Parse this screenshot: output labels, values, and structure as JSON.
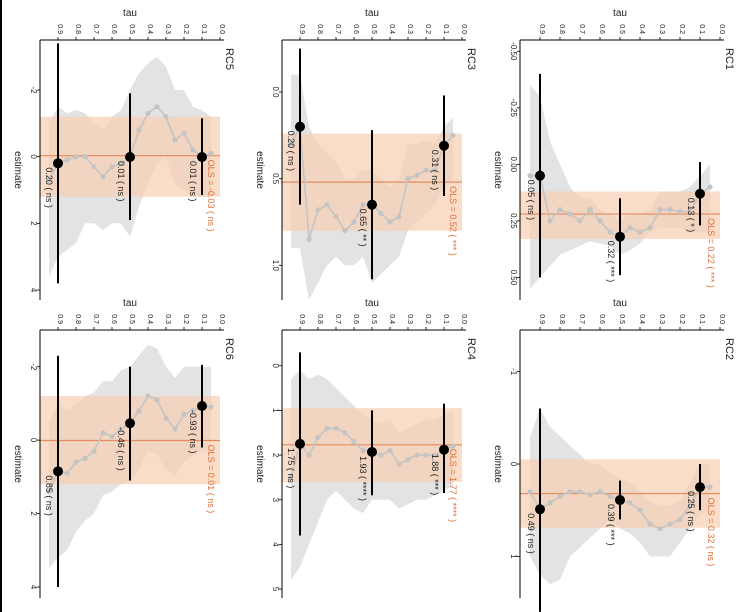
{
  "colors": {
    "band": "#d9d9d9",
    "ols_band": "#f6cfb0",
    "ols_line": "#e38b5e",
    "ols_text": "#e0703a",
    "point": "#000000",
    "curve": "#c4c4c4"
  },
  "common": {
    "tau_label": "tau",
    "estimate_label": "estimate"
  },
  "chart_data": [
    {
      "type": "line",
      "panel": "RC1",
      "title": "RC1",
      "xlabel": "tau",
      "ylabel": "estimate",
      "xlim": [
        1.0,
        0.0
      ],
      "ylim": [
        -0.55,
        0.6
      ],
      "x_ticks": [
        0.9,
        0.8,
        0.7,
        0.6,
        0.5,
        0.4,
        0.3,
        0.2,
        0.1,
        0.0
      ],
      "x_tick_labels": [
        "0.9",
        "0.8",
        "0.7",
        "0.6",
        "0.5",
        "0.4",
        "0.3",
        "0.2",
        "0.1",
        "0.0"
      ],
      "y_ticks": [
        -0.5,
        -0.25,
        0.0,
        0.25,
        0.5
      ],
      "y_tick_labels": [
        "-0.50",
        "-0.25",
        "0.00",
        "0.25",
        "0.50"
      ],
      "curve": {
        "x": [
          0.95,
          0.9,
          0.85,
          0.8,
          0.75,
          0.7,
          0.65,
          0.6,
          0.55,
          0.5,
          0.45,
          0.4,
          0.35,
          0.3,
          0.25,
          0.2,
          0.15,
          0.1,
          0.05
        ],
        "y": [
          0.05,
          0.05,
          0.25,
          0.2,
          0.22,
          0.25,
          0.2,
          0.25,
          0.3,
          0.32,
          0.28,
          0.3,
          0.28,
          0.2,
          0.2,
          0.21,
          0.21,
          0.13,
          0.1
        ]
      },
      "band": {
        "lower": [
          -0.35,
          -0.3,
          -0.1,
          0.0,
          0.1,
          0.15,
          0.15,
          0.2,
          0.22,
          0.25,
          0.22,
          0.22,
          0.2,
          0.12,
          0.12,
          0.12,
          0.1,
          0.05,
          0.0
        ],
        "upper": [
          0.55,
          0.5,
          0.45,
          0.4,
          0.38,
          0.36,
          0.34,
          0.35,
          0.36,
          0.4,
          0.38,
          0.35,
          0.3,
          0.28,
          0.28,
          0.28,
          0.3,
          0.3,
          0.3
        ]
      },
      "ols": {
        "estimate": 0.22,
        "ci": [
          0.12,
          0.33
        ],
        "label": "OLS = 0.22 ( *** )"
      },
      "points": [
        {
          "tau": 0.9,
          "estimate": 0.05,
          "ci": [
            -0.4,
            0.5
          ],
          "label": "0.05 ( ns )"
        },
        {
          "tau": 0.5,
          "estimate": 0.32,
          "ci": [
            0.15,
            0.49
          ],
          "label": "0.32 ( *** )"
        },
        {
          "tau": 0.1,
          "estimate": 0.13,
          "ci": [
            -0.01,
            0.27
          ],
          "label": "0.13 ( * )"
        }
      ]
    },
    {
      "type": "line",
      "panel": "RC3",
      "title": "RC3",
      "xlabel": "tau",
      "ylabel": "estimate",
      "xlim": [
        1.0,
        0.0
      ],
      "ylim": [
        -0.3,
        1.2
      ],
      "x_ticks": [
        0.9,
        0.8,
        0.7,
        0.6,
        0.5,
        0.4,
        0.3,
        0.2,
        0.1,
        0.0
      ],
      "x_tick_labels": [
        "0.9",
        "0.8",
        "0.7",
        "0.6",
        "0.5",
        "0.4",
        "0.3",
        "0.2",
        "0.1",
        "0.0"
      ],
      "y_ticks": [
        0.0,
        0.5,
        1.0
      ],
      "y_tick_labels": [
        "0.0",
        "0.5",
        "1.0"
      ],
      "curve": {
        "x": [
          0.95,
          0.9,
          0.85,
          0.8,
          0.75,
          0.7,
          0.65,
          0.6,
          0.55,
          0.5,
          0.45,
          0.4,
          0.35,
          0.3,
          0.25,
          0.2,
          0.15,
          0.1,
          0.05
        ],
        "y": [
          0.3,
          0.2,
          0.85,
          0.68,
          0.65,
          0.72,
          0.8,
          0.75,
          0.65,
          0.65,
          0.7,
          0.75,
          0.72,
          0.5,
          0.48,
          0.45,
          0.45,
          0.31,
          0.25
        ]
      },
      "band": {
        "lower": [
          -0.1,
          -0.1,
          0.2,
          0.3,
          0.35,
          0.4,
          0.5,
          0.5,
          0.45,
          0.45,
          0.5,
          0.55,
          0.5,
          0.3,
          0.3,
          0.28,
          0.3,
          0.2,
          0.15
        ],
        "upper": [
          0.9,
          0.9,
          1.2,
          1.1,
          1.0,
          0.95,
          1.0,
          1.0,
          0.95,
          1.1,
          1.05,
          1.0,
          0.95,
          0.8,
          0.75,
          0.7,
          0.65,
          0.55,
          0.5
        ]
      },
      "ols": {
        "estimate": 0.52,
        "ci": [
          0.24,
          0.8
        ],
        "label": "OLS = 0.52 ( *** )"
      },
      "points": [
        {
          "tau": 0.9,
          "estimate": 0.2,
          "ci": [
            -0.25,
            0.65
          ],
          "label": "0.20 ( ns )"
        },
        {
          "tau": 0.5,
          "estimate": 0.65,
          "ci": [
            0.22,
            1.08
          ],
          "label": "0.65 ( ** )"
        },
        {
          "tau": 0.1,
          "estimate": 0.31,
          "ci": [
            0.02,
            0.6
          ],
          "label": "0.31 ( ns )"
        }
      ]
    },
    {
      "type": "line",
      "panel": "RC5",
      "title": "RC5",
      "xlabel": "tau",
      "ylabel": "estimate",
      "xlim": [
        1.0,
        0.0
      ],
      "ylim": [
        -3.5,
        4.3
      ],
      "x_ticks": [
        0.9,
        0.8,
        0.7,
        0.6,
        0.5,
        0.4,
        0.3,
        0.2,
        0.1,
        0.0
      ],
      "x_tick_labels": [
        "0.9",
        "0.8",
        "0.7",
        "0.6",
        "0.5",
        "0.4",
        "0.3",
        "0.2",
        "0.1",
        "0.0"
      ],
      "y_ticks": [
        -2,
        0,
        2,
        4
      ],
      "y_tick_labels": [
        "-2",
        "0",
        "2",
        "4"
      ],
      "curve": {
        "x": [
          0.95,
          0.9,
          0.85,
          0.8,
          0.75,
          0.7,
          0.65,
          0.6,
          0.55,
          0.5,
          0.45,
          0.4,
          0.35,
          0.3,
          0.25,
          0.2,
          0.15,
          0.1,
          0.05
        ],
        "y": [
          0.7,
          0.2,
          0.1,
          0.0,
          0.0,
          0.3,
          0.6,
          0.3,
          0.2,
          0.0,
          -0.8,
          -1.3,
          -1.5,
          -1.2,
          -0.5,
          -0.7,
          -0.2,
          0.0,
          -0.1
        ]
      },
      "band": {
        "lower": [
          -1.0,
          -1.5,
          -1.3,
          -1.4,
          -1.3,
          -1.0,
          -0.8,
          -1.2,
          -1.4,
          -2.0,
          -2.5,
          -2.8,
          -3.0,
          -2.7,
          -2.0,
          -2.0,
          -1.5,
          -1.4,
          -1.2
        ],
        "upper": [
          3.6,
          3.0,
          2.8,
          2.6,
          2.0,
          2.0,
          2.2,
          2.0,
          2.0,
          2.4,
          1.5,
          0.8,
          0.2,
          0.0,
          0.8,
          1.0,
          1.2,
          1.2,
          1.2
        ]
      },
      "ols": {
        "estimate": -0.03,
        "ci": [
          -1.2,
          1.2
        ],
        "label": "OLS = -0.03 ( ns )"
      },
      "points": [
        {
          "tau": 0.9,
          "estimate": 0.2,
          "ci": [
            -3.4,
            3.8
          ],
          "label": "0.20 ( ns )"
        },
        {
          "tau": 0.5,
          "estimate": 0.01,
          "ci": [
            -1.9,
            1.9
          ],
          "label": "0.01 ( ns )"
        },
        {
          "tau": 0.1,
          "estimate": 0.01,
          "ci": [
            -1.15,
            1.15
          ],
          "label": "0.01 ( ns )"
        }
      ]
    },
    {
      "type": "line",
      "panel": "RC2",
      "title": "RC2",
      "xlabel": "tau",
      "ylabel": "estimate",
      "xlim": [
        1.0,
        0.0
      ],
      "ylim": [
        -1.45,
        1.45
      ],
      "x_ticks": [
        0.9,
        0.8,
        0.7,
        0.6,
        0.5,
        0.4,
        0.3,
        0.2,
        0.1,
        0.0
      ],
      "x_tick_labels": [
        "0.9",
        "0.8",
        "0.7",
        "0.6",
        "0.5",
        "0.4",
        "0.3",
        "0.2",
        "0.1",
        "0.0"
      ],
      "y_ticks": [
        -1,
        0,
        1
      ],
      "y_tick_labels": [
        "-1",
        "0",
        "1"
      ],
      "curve": {
        "x": [
          0.95,
          0.9,
          0.85,
          0.8,
          0.75,
          0.7,
          0.65,
          0.6,
          0.55,
          0.5,
          0.45,
          0.4,
          0.35,
          0.3,
          0.25,
          0.2,
          0.15,
          0.1,
          0.05
        ],
        "y": [
          0.3,
          0.49,
          0.42,
          0.35,
          0.3,
          0.3,
          0.33,
          0.3,
          0.35,
          0.39,
          0.42,
          0.5,
          0.65,
          0.7,
          0.65,
          0.6,
          0.45,
          0.25,
          0.25
        ]
      },
      "band": {
        "lower": [
          -0.3,
          -0.6,
          -0.4,
          -0.3,
          -0.2,
          -0.1,
          0.0,
          0.0,
          0.1,
          0.15,
          0.2,
          0.3,
          0.4,
          0.45,
          0.45,
          0.4,
          0.2,
          0.0,
          0.0
        ],
        "upper": [
          1.0,
          1.2,
          1.3,
          1.25,
          1.0,
          0.9,
          0.8,
          0.7,
          0.6,
          0.7,
          0.75,
          0.85,
          1.0,
          1.0,
          1.0,
          0.85,
          0.7,
          0.55,
          0.5
        ]
      },
      "ols": {
        "estimate": 0.32,
        "ci": [
          -0.05,
          0.69
        ],
        "label": "OLS = 0.32 ( ns )"
      },
      "points": [
        {
          "tau": 0.9,
          "estimate": 0.49,
          "ci": [
            -0.6,
            1.6
          ],
          "label": "0.49 ( ns )"
        },
        {
          "tau": 0.5,
          "estimate": 0.39,
          "ci": [
            0.18,
            0.6
          ],
          "label": "0.39 ( *** )"
        },
        {
          "tau": 0.1,
          "estimate": 0.25,
          "ci": [
            0.0,
            0.5
          ],
          "label": "0.25 ( ns )"
        }
      ]
    },
    {
      "type": "line",
      "panel": "RC4",
      "title": "RC4",
      "xlabel": "tau",
      "ylabel": "estimate",
      "xlim": [
        1.0,
        0.0
      ],
      "ylim": [
        -0.8,
        5.2
      ],
      "x_ticks": [
        0.9,
        0.8,
        0.7,
        0.6,
        0.5,
        0.4,
        0.3,
        0.2,
        0.1,
        0.0
      ],
      "x_tick_labels": [
        "0.9",
        "0.8",
        "0.7",
        "0.6",
        "0.5",
        "0.4",
        "0.3",
        "0.2",
        "0.1",
        "0.0"
      ],
      "y_ticks": [
        0,
        1,
        2,
        3,
        4,
        5
      ],
      "y_tick_labels": [
        "0",
        "1",
        "2",
        "3",
        "4",
        "5"
      ],
      "curve": {
        "x": [
          0.95,
          0.9,
          0.85,
          0.8,
          0.75,
          0.7,
          0.65,
          0.6,
          0.55,
          0.5,
          0.45,
          0.4,
          0.35,
          0.3,
          0.25,
          0.2,
          0.15,
          0.1,
          0.05
        ],
        "y": [
          2.5,
          1.75,
          2.0,
          1.6,
          1.4,
          1.4,
          1.5,
          1.7,
          1.9,
          1.93,
          2.0,
          1.9,
          2.2,
          2.1,
          2.0,
          2.0,
          2.0,
          1.88,
          1.8
        ]
      },
      "band": {
        "lower": [
          0.3,
          0.1,
          0.3,
          0.2,
          0.3,
          0.5,
          0.7,
          0.9,
          1.1,
          1.2,
          1.3,
          1.2,
          1.5,
          1.4,
          1.3,
          1.2,
          1.2,
          1.1,
          1.0
        ],
        "upper": [
          4.8,
          4.5,
          4.0,
          3.5,
          3.0,
          2.8,
          3.0,
          3.2,
          3.3,
          3.0,
          3.0,
          3.0,
          3.2,
          3.1,
          3.0,
          3.0,
          2.9,
          2.8,
          2.7
        ]
      },
      "ols": {
        "estimate": 1.77,
        "ci": [
          0.95,
          2.6
        ],
        "label": "OLS = 1.77 ( **** )"
      },
      "points": [
        {
          "tau": 0.9,
          "estimate": 1.75,
          "ci": [
            -0.3,
            3.8
          ],
          "label": "1.75 ( ns )"
        },
        {
          "tau": 0.5,
          "estimate": 1.93,
          "ci": [
            1.0,
            2.9
          ],
          "label": "1.93 ( **** )"
        },
        {
          "tau": 0.1,
          "estimate": 1.88,
          "ci": [
            0.85,
            2.85
          ],
          "label": "1.88 ( *** )"
        }
      ]
    },
    {
      "type": "line",
      "panel": "RC6",
      "title": "RC6",
      "xlabel": "tau",
      "ylabel": "estimate",
      "xlim": [
        1.0,
        0.0
      ],
      "ylim": [
        -3.0,
        4.3
      ],
      "x_ticks": [
        0.9,
        0.8,
        0.7,
        0.6,
        0.5,
        0.4,
        0.3,
        0.2,
        0.1,
        0.0
      ],
      "x_tick_labels": [
        "0.9",
        "0.8",
        "0.7",
        "0.6",
        "0.5",
        "0.4",
        "0.3",
        "0.2",
        "0.1",
        "0.0"
      ],
      "y_ticks": [
        -2,
        0,
        2,
        4
      ],
      "y_tick_labels": [
        "-2",
        "0",
        "2",
        "4"
      ],
      "curve": {
        "x": [
          0.95,
          0.9,
          0.85,
          0.8,
          0.75,
          0.7,
          0.65,
          0.6,
          0.55,
          0.5,
          0.45,
          0.4,
          0.35,
          0.3,
          0.25,
          0.2,
          0.15,
          0.1,
          0.05
        ],
        "y": [
          1.4,
          0.85,
          0.9,
          0.6,
          0.5,
          0.3,
          -0.2,
          -0.1,
          -0.3,
          -0.46,
          -0.8,
          -1.2,
          -1.1,
          -0.6,
          -0.3,
          -0.7,
          -0.8,
          -0.93,
          -0.9
        ]
      },
      "band": {
        "lower": [
          -0.5,
          -1.0,
          -0.8,
          -1.0,
          -1.2,
          -1.3,
          -1.6,
          -1.6,
          -1.9,
          -2.0,
          -2.3,
          -2.6,
          -2.5,
          -2.0,
          -1.7,
          -2.0,
          -2.0,
          -2.0,
          -2.0
        ],
        "upper": [
          3.5,
          3.2,
          3.0,
          2.5,
          2.2,
          2.0,
          1.5,
          1.4,
          1.2,
          1.1,
          0.8,
          0.3,
          0.4,
          0.8,
          1.0,
          0.6,
          0.4,
          0.3,
          0.3
        ]
      },
      "ols": {
        "estimate": 0.01,
        "ci": [
          -1.2,
          1.2
        ],
        "label": "OLS = 0.01 ( ns )"
      },
      "points": [
        {
          "tau": 0.9,
          "estimate": 0.85,
          "ci": [
            -2.3,
            4.0
          ],
          "label": "0.85 ( ns )"
        },
        {
          "tau": 0.5,
          "estimate": -0.46,
          "ci": [
            -2.0,
            1.1
          ],
          "label": "-0.46 ( ns )"
        },
        {
          "tau": 0.1,
          "estimate": -0.93,
          "ci": [
            -2.05,
            0.2
          ],
          "label": "-0.93 ( ns )"
        }
      ]
    }
  ]
}
